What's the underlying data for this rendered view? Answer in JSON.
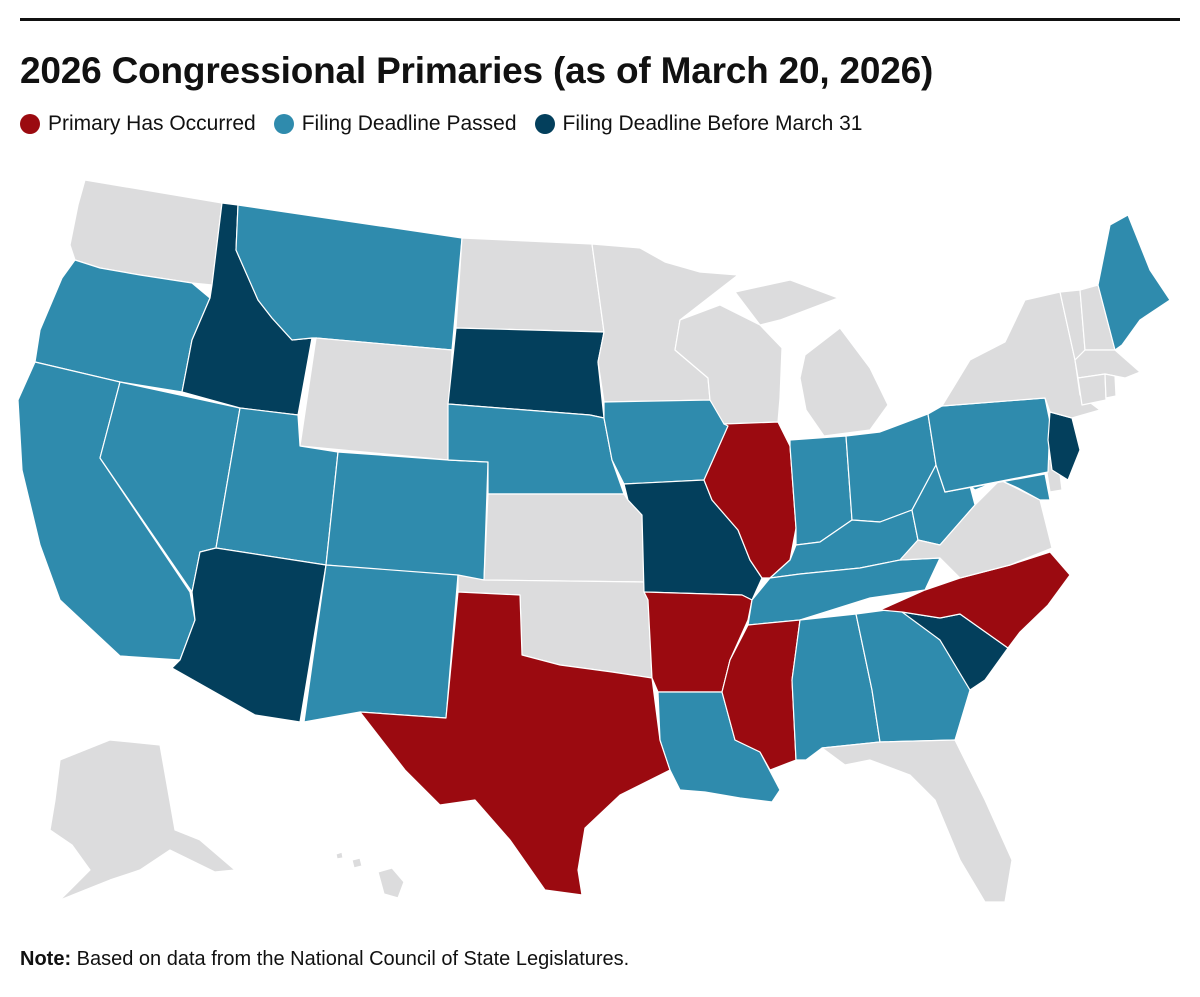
{
  "title": "2026 Congressional Primaries (as of March 20, 2026)",
  "legend": [
    {
      "label": "Primary Has Occurred",
      "color": "#9b0a10"
    },
    {
      "label": "Filing Deadline Passed",
      "color": "#2f8bad"
    },
    {
      "label": "Filing Deadline Before March 31",
      "color": "#033f5c"
    }
  ],
  "colors": {
    "occurred": "#9b0a10",
    "passed": "#2f8bad",
    "before_march_31": "#033f5c",
    "none": "#dcdcdd"
  },
  "status_by_state": {
    "TX": "occurred",
    "AR": "occurred",
    "MS": "occurred",
    "IL": "occurred",
    "NC": "occurred",
    "WA": "none",
    "OR": "passed",
    "CA": "passed",
    "NV": "passed",
    "ID": "before_march_31",
    "MT": "passed",
    "WY": "none",
    "UT": "passed",
    "AZ": "before_march_31",
    "CO": "passed",
    "NM": "passed",
    "ND": "none",
    "SD": "before_march_31",
    "NE": "passed",
    "KS": "none",
    "OK": "none",
    "MN": "none",
    "IA": "passed",
    "MO": "before_march_31",
    "LA": "passed",
    "WI": "none",
    "MI": "none",
    "IN": "passed",
    "OH": "passed",
    "KY": "passed",
    "TN": "passed",
    "AL": "passed",
    "GA": "passed",
    "FL": "none",
    "SC": "before_march_31",
    "VA": "none",
    "WV": "passed",
    "MD": "passed",
    "DE": "none",
    "PA": "passed",
    "NJ": "before_march_31",
    "NY": "none",
    "CT": "none",
    "RI": "none",
    "MA": "none",
    "VT": "none",
    "NH": "none",
    "ME": "passed",
    "AK": "none",
    "HI": "none"
  },
  "note": {
    "label": "Note:",
    "text": " Based on data from the National Council of State Legislatures."
  }
}
